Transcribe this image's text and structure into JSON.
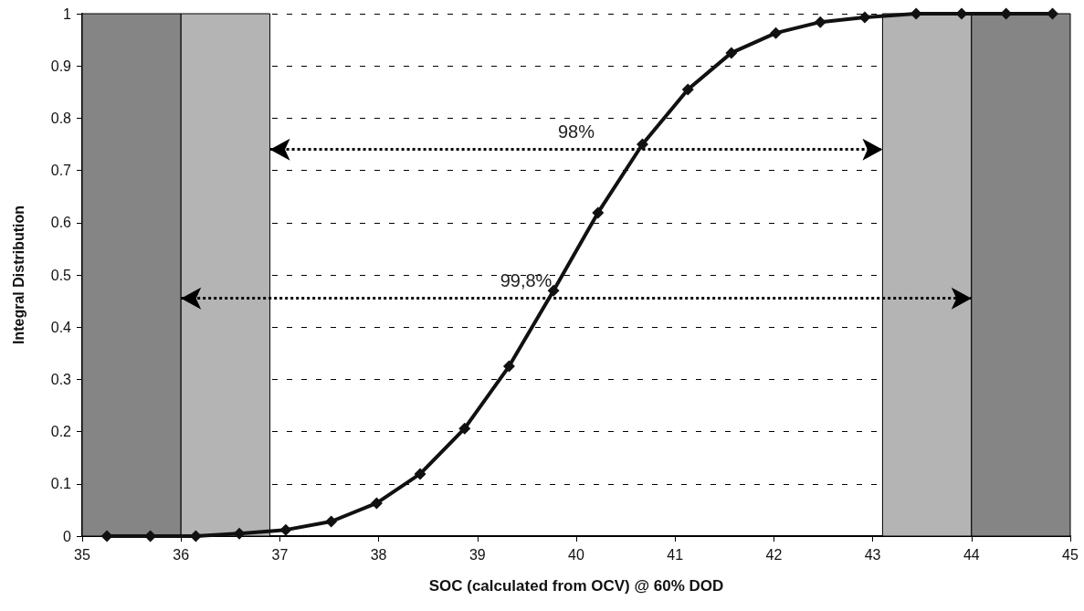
{
  "chart_data": {
    "type": "line",
    "xlabel": "SOC (calculated from OCV) @ 60% DOD",
    "ylabel": "Integral Distribution",
    "x": [
      35.25,
      35.69,
      36.15,
      36.59,
      37.06,
      37.52,
      37.98,
      38.42,
      38.87,
      39.32,
      39.77,
      40.22,
      40.67,
      41.13,
      41.57,
      42.02,
      42.47,
      42.92,
      43.44,
      43.9,
      44.35,
      44.82
    ],
    "series": [
      {
        "color": "#111111",
        "values": [
          0,
          0,
          0,
          0.005,
          0.012,
          0.028,
          0.063,
          0.119,
          0.206,
          0.325,
          0.47,
          0.619,
          0.75,
          0.855,
          0.925,
          0.963,
          0.984,
          0.993,
          1,
          1,
          1,
          1
        ]
      }
    ],
    "marker": "diamond",
    "line_style": "solid",
    "xlim": [
      35,
      45
    ],
    "xticks": [
      35,
      36,
      37,
      38,
      39,
      40,
      41,
      42,
      43,
      44,
      45
    ],
    "ylim": [
      0,
      1
    ],
    "yticks": [
      0,
      0.1,
      0.2,
      0.3,
      0.4,
      0.5,
      0.6,
      0.7,
      0.8,
      0.9,
      1
    ],
    "grid": "y",
    "bands": [
      {
        "axis": "x",
        "from": 35,
        "to": 36,
        "color": "#858585"
      },
      {
        "axis": "x",
        "from": 36,
        "to": 36.9,
        "color": "#b4b4b4"
      },
      {
        "axis": "x",
        "from": 43.1,
        "to": 44,
        "color": "#b4b4b4"
      },
      {
        "axis": "x",
        "from": 44,
        "to": 45,
        "color": "#858585"
      }
    ],
    "annotations": [
      "98%",
      "99,8%"
    ]
  }
}
